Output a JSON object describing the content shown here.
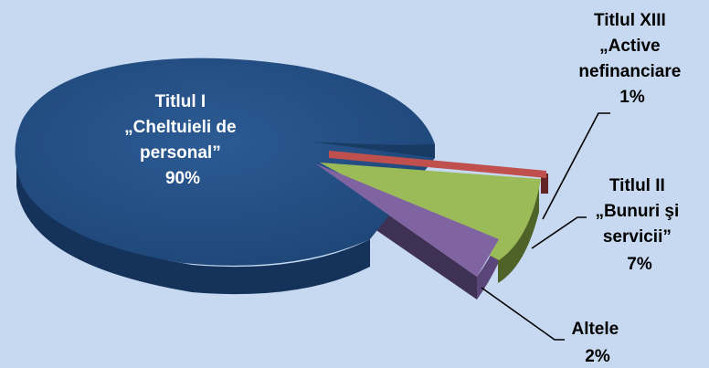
{
  "chart_data": {
    "type": "pie",
    "slices": [
      {
        "label_lines": [
          "Titlul I",
          "„Cheltuieli de",
          "personal”"
        ],
        "value": 90,
        "percent_label": "90%",
        "color": "#1f497d"
      },
      {
        "label_lines": [
          "Titlul XIII",
          "„Active",
          "nefinanciare"
        ],
        "value": 1,
        "percent_label": "1%",
        "color": "#c0504d"
      },
      {
        "label_lines": [
          "Titlul II",
          "„Bunuri şi",
          "servicii”"
        ],
        "value": 7,
        "percent_label": "7%",
        "color": "#9bbb59"
      },
      {
        "label_lines": [
          "Altele"
        ],
        "value": 2,
        "percent_label": "2%",
        "color": "#8064a2"
      }
    ]
  }
}
